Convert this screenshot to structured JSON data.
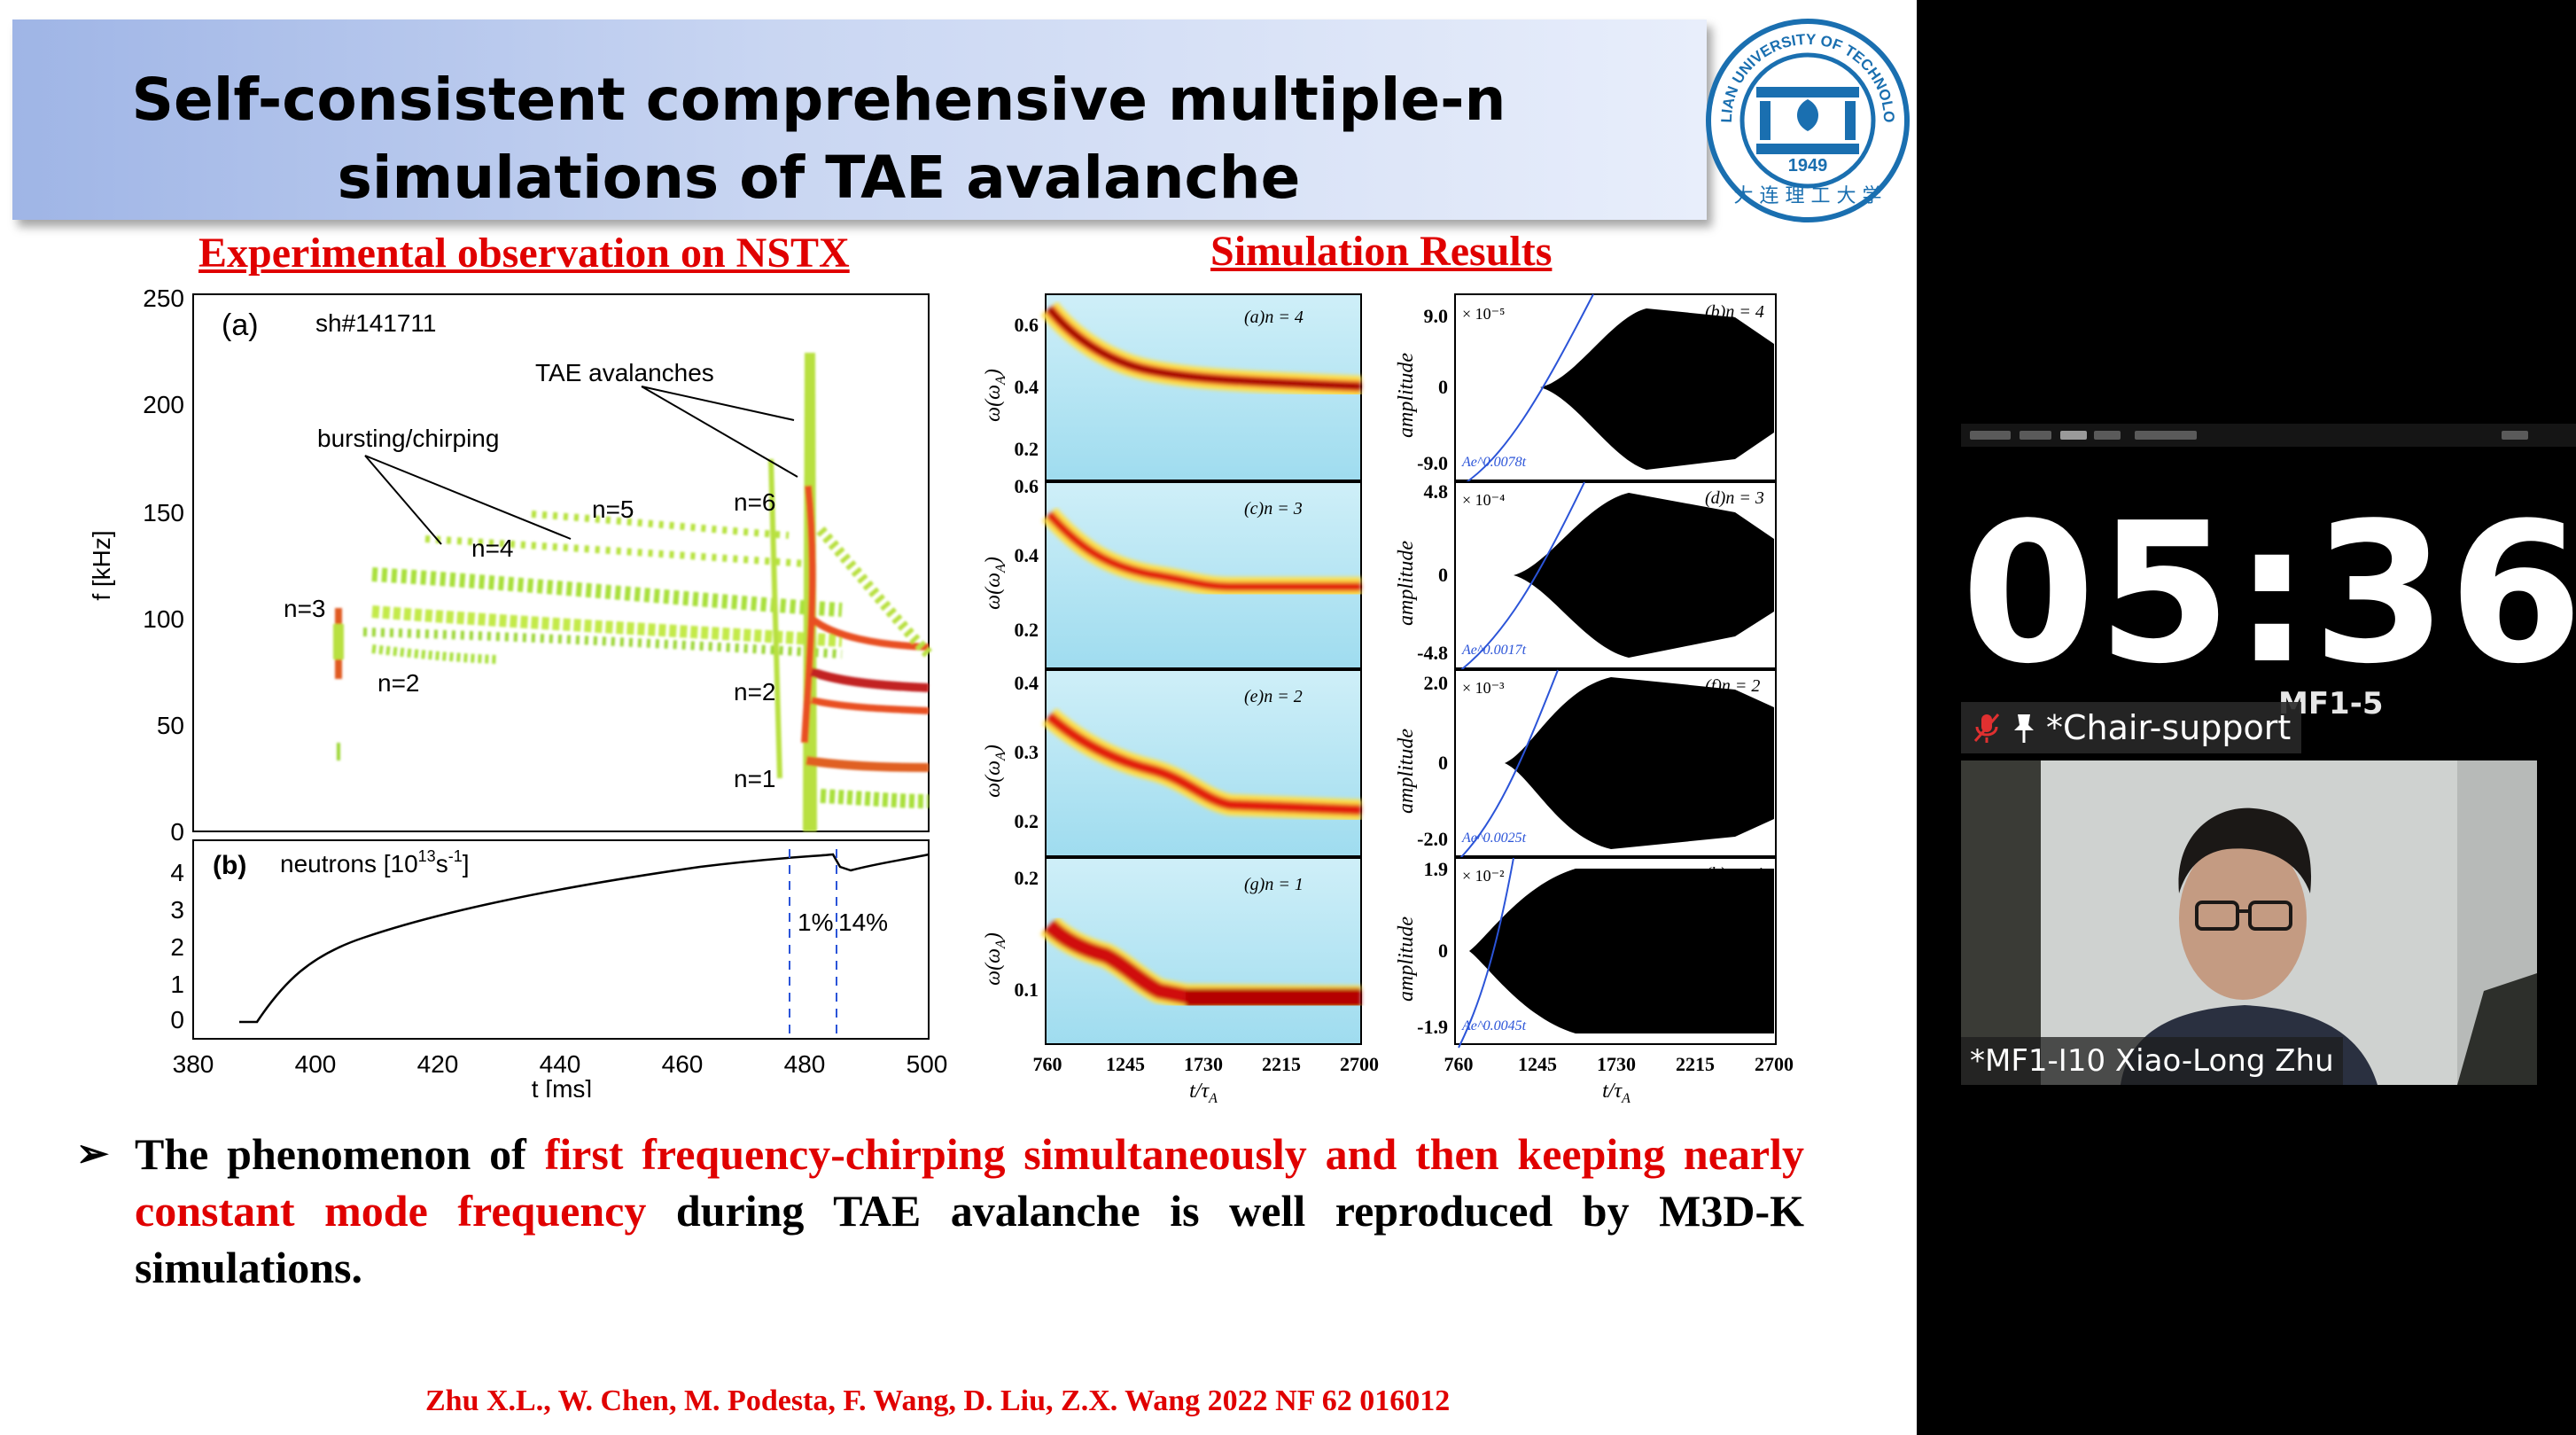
{
  "slide": {
    "title_line_1": "Self-consistent comprehensive multiple-n",
    "title_line_2": "simulations of TAE avalanche",
    "logo": {
      "icon": "university-seal-icon",
      "text": "DALIAN UNIVERSITY OF TECHNOLOGY",
      "year": "1949",
      "color": "#1a6fb0"
    },
    "experimental_heading": "Experimental observation on NSTX",
    "simulation_heading": "Simulation Results",
    "bullet": {
      "icon": "arrow-bullet-icon",
      "part1": "The phenomenon of ",
      "highlight1": "first frequency-chirping simultaneously and then keeping nearly constant mode frequency",
      "part2": " during TAE avalanche is well reproduced by M3D-K simulations."
    },
    "citation": "Zhu X.L., W. Chen, M. Podesta, F. Wang, D. Liu, Z.X. Wang 2022 NF  62 016012",
    "accent_red": "#e00000"
  },
  "experiment_figure": {
    "panel_a": {
      "label": "(a)",
      "shot": "sh#141711",
      "ylabel": "f [kHz]",
      "yticks": [
        "250",
        "200",
        "150",
        "100",
        "50",
        "0"
      ],
      "annotations": {
        "avalanches": "TAE avalanches",
        "bursting": "bursting/chirping",
        "n3": "n=3",
        "n2_left": "n=2",
        "n4": "n=4",
        "n5": "n=5",
        "n6": "n=6",
        "n2_right": "n=2",
        "n1": "n=1"
      }
    },
    "panel_b": {
      "label": "(b)",
      "title_prefix": "neutrons [10",
      "title_exp": "13",
      "title_mid": "s",
      "title_exp2": "-1",
      "title_suffix": "]",
      "yticks": [
        "4",
        "3",
        "2",
        "1",
        "0"
      ],
      "drop1": "1%",
      "drop2": "14%",
      "xticks": [
        "380",
        "400",
        "420",
        "440",
        "460",
        "480",
        "500"
      ],
      "xlabel": "t [ms]"
    }
  },
  "simulation_figure": {
    "ylabel_left": "ω(ω",
    "ylabel_left_sub": "A",
    "ylabel_right": "amplitude",
    "xlabel": "t/τ",
    "xlabel_sub": "A",
    "xticks": [
      "760",
      "1245",
      "1730",
      "2215",
      "2700"
    ],
    "rows": [
      {
        "left_label": "(a)n = 4",
        "left_yticks": [
          "0.6",
          "0.4",
          "0.2"
        ],
        "right_label": "(b)n = 4",
        "right_scale": "× 10⁻⁵",
        "right_yticks": [
          "9.0",
          "0",
          "-9.0"
        ],
        "growth": "Ae^0.0078t"
      },
      {
        "left_label": "(c)n = 3",
        "left_yticks": [
          "0.6",
          "0.4",
          "0.2"
        ],
        "right_label": "(d)n = 3",
        "right_scale": "× 10⁻⁴",
        "right_yticks": [
          "4.8",
          "0",
          "-4.8"
        ],
        "growth": "Ae^0.0017t"
      },
      {
        "left_label": "(e)n = 2",
        "left_yticks": [
          "0.4",
          "0.3",
          "0.2"
        ],
        "right_label": "(f)n = 2",
        "right_scale": "× 10⁻³",
        "right_yticks": [
          "2.0",
          "0",
          "-2.0"
        ],
        "growth": "Ae^0.0025t"
      },
      {
        "left_label": "(g)n = 1",
        "left_yticks": [
          "0.2",
          "0.1"
        ],
        "right_label": "(h)n = 1",
        "right_scale": "× 10⁻²",
        "right_yticks": [
          "1.9",
          "0",
          "-1.9"
        ],
        "growth": "Ae^0.0045t"
      }
    ]
  },
  "meeting": {
    "timer": "05:36",
    "timer_small_label": "MF1-5",
    "chair_name": "*Chair-support",
    "chair_icons": [
      "mic-muted-icon",
      "pin-icon"
    ],
    "speaker_name": "*MF1-I10 Xiao-Long Zhu"
  }
}
